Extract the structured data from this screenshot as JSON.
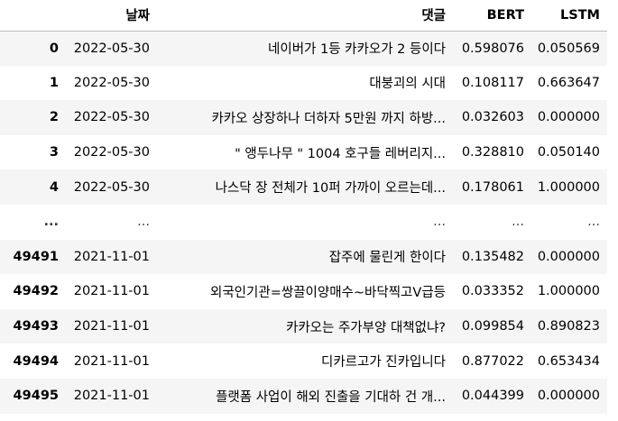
{
  "columns": {
    "index": "",
    "date": "날짜",
    "comment": "댓글",
    "bert": "BERT",
    "lstm": "LSTM"
  },
  "rows": [
    {
      "index": "0",
      "date": "2022-05-30",
      "comment": "네이버가 1등 카카오가 2 등이다",
      "bert": "0.598076",
      "lstm": "0.050569"
    },
    {
      "index": "1",
      "date": "2022-05-30",
      "comment": "대붕괴의 시대",
      "bert": "0.108117",
      "lstm": "0.663647"
    },
    {
      "index": "2",
      "date": "2022-05-30",
      "comment": "카카오 상장하나 더하자 5만원 까지 하방...",
      "bert": "0.032603",
      "lstm": "0.000000"
    },
    {
      "index": "3",
      "date": "2022-05-30",
      "comment": "\" 앵두나무 \" 1004 호구들 레버리지...",
      "bert": "0.328810",
      "lstm": "0.050140"
    },
    {
      "index": "4",
      "date": "2022-05-30",
      "comment": "나스닥 장 전체가 10퍼 가까이 오르는데...",
      "bert": "0.178061",
      "lstm": "1.000000"
    },
    {
      "index": "...",
      "date": "...",
      "comment": "...",
      "bert": "...",
      "lstm": "..."
    },
    {
      "index": "49491",
      "date": "2021-11-01",
      "comment": "잡주에 물린게 한이다",
      "bert": "0.135482",
      "lstm": "0.000000"
    },
    {
      "index": "49492",
      "date": "2021-11-01",
      "comment": "외국인기관=쌍끌이양매수~바닥찍고V급등",
      "bert": "0.033352",
      "lstm": "1.000000"
    },
    {
      "index": "49493",
      "date": "2021-11-01",
      "comment": "카카오는 주가부양 대책없냐?",
      "bert": "0.099854",
      "lstm": "0.890823"
    },
    {
      "index": "49494",
      "date": "2021-11-01",
      "comment": "디카르고가 진카입니다",
      "bert": "0.877022",
      "lstm": "0.653434"
    },
    {
      "index": "49495",
      "date": "2021-11-01",
      "comment": "플랫폼 사업이 해외 진출을 기대하 건 개...",
      "bert": "0.044399",
      "lstm": "0.000000"
    }
  ]
}
